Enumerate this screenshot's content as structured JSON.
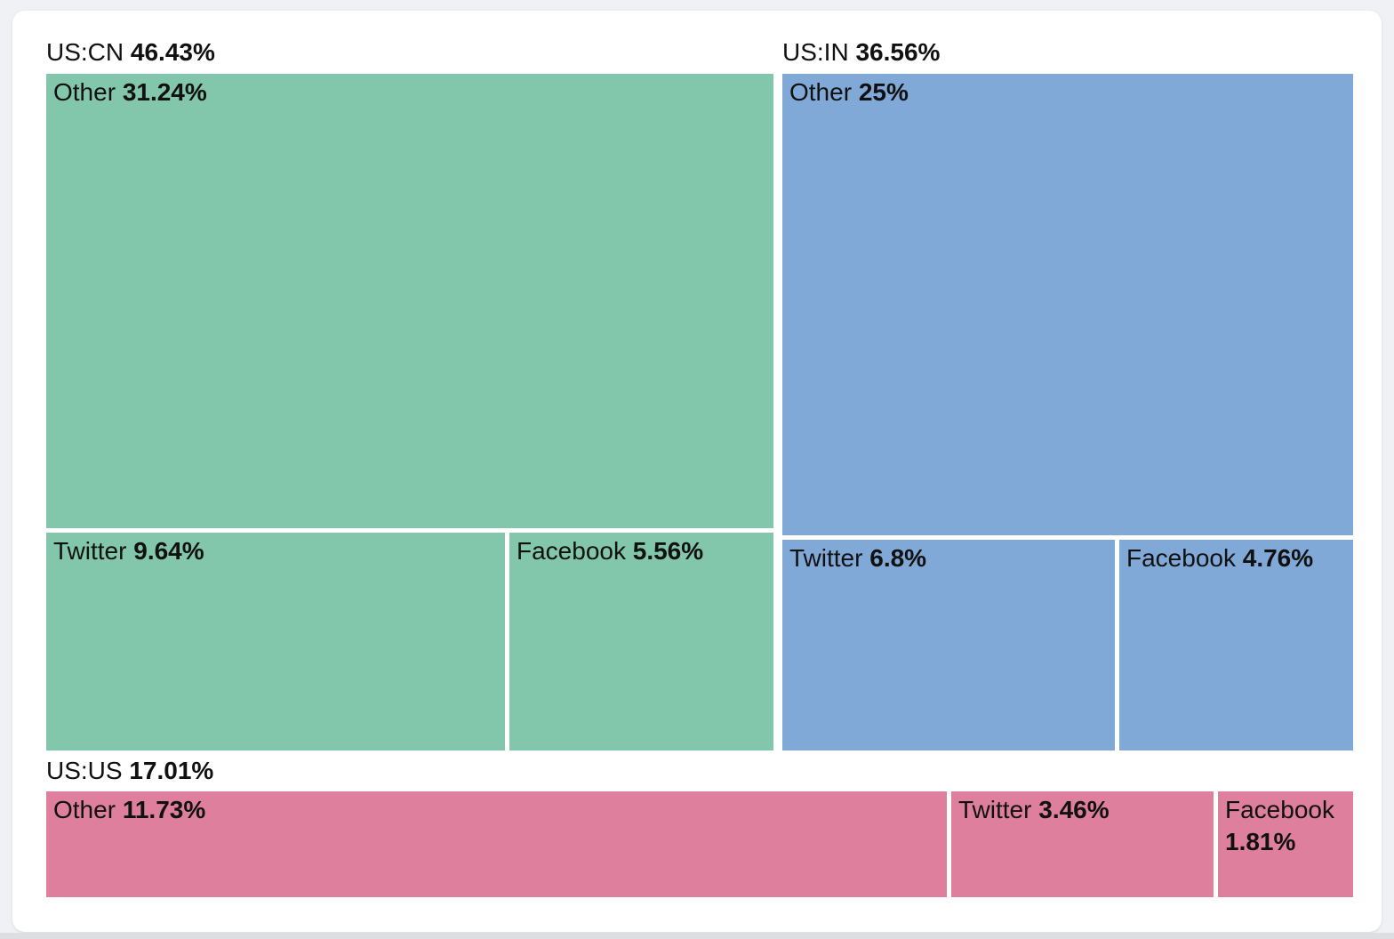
{
  "page": {
    "background_color": "#eff1f4",
    "card_color": "#ffffff",
    "bottom_edge_color": "#dcdee1"
  },
  "chart_data": {
    "type": "treemap",
    "unit": "%",
    "legend_position": "none",
    "groups": [
      {
        "label": "US:CN",
        "value": 46.43,
        "value_label": "46.43%",
        "color": "#82C6AB",
        "children": [
          {
            "label": "Other",
            "value": 31.24,
            "value_label": "31.24%"
          },
          {
            "label": "Twitter",
            "value": 9.64,
            "value_label": "9.64%"
          },
          {
            "label": "Facebook",
            "value": 5.56,
            "value_label": "5.56%"
          }
        ]
      },
      {
        "label": "US:IN",
        "value": 36.56,
        "value_label": "36.56%",
        "color": "#80A9D7",
        "children": [
          {
            "label": "Other",
            "value": 25,
            "value_label": "25%"
          },
          {
            "label": "Twitter",
            "value": 6.8,
            "value_label": "6.8%"
          },
          {
            "label": "Facebook",
            "value": 4.76,
            "value_label": "4.76%"
          }
        ]
      },
      {
        "label": "US:US",
        "value": 17.01,
        "value_label": "17.01%",
        "color": "#DD7F9D",
        "children": [
          {
            "label": "Other",
            "value": 11.73,
            "value_label": "11.73%"
          },
          {
            "label": "Twitter",
            "value": 3.46,
            "value_label": "3.46%"
          },
          {
            "label": "Facebook",
            "value": 1.81,
            "value_label": "1.81%"
          }
        ]
      }
    ]
  }
}
